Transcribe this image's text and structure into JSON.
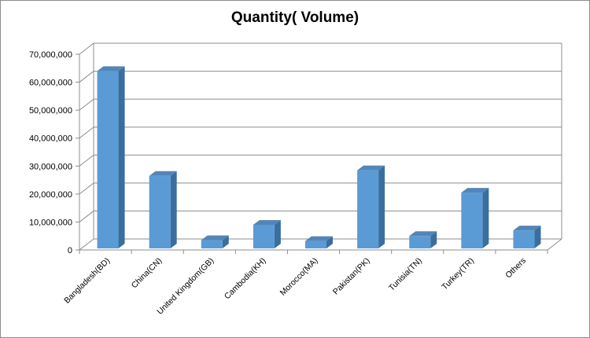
{
  "chart_data": {
    "type": "bar",
    "title": "Quantity( Volume)",
    "xlabel": "",
    "ylabel": "",
    "categories": [
      "Bangladesh(BD)",
      "China(CN)",
      "United Kingdom(GB)",
      "Cambodia(KH)",
      "Morocco(MA)",
      "Pakistan(PK)",
      "Tunisia(TN)",
      "Turkey(TR)",
      "Others"
    ],
    "values": [
      64000000,
      26500000,
      3500000,
      9000000,
      3200000,
      28500000,
      5000000,
      20500000,
      7000000
    ],
    "ylim": [
      0,
      70000000
    ],
    "yticks": [
      0,
      10000000,
      20000000,
      30000000,
      40000000,
      50000000,
      60000000,
      70000000
    ],
    "ytick_labels": [
      "0",
      "10,000,000",
      "20,000,000",
      "30,000,000",
      "40,000,000",
      "50,000,000",
      "60,000,000",
      "70,000,000"
    ],
    "grid": true,
    "legend": "none",
    "style": "3d-column",
    "colors": {
      "bar_front": "#5b9bd5",
      "bar_side": "#3a6e9e",
      "bar_top": "#5485b8",
      "grid": "#8c8c8c",
      "border": "#8c8c8c"
    }
  }
}
